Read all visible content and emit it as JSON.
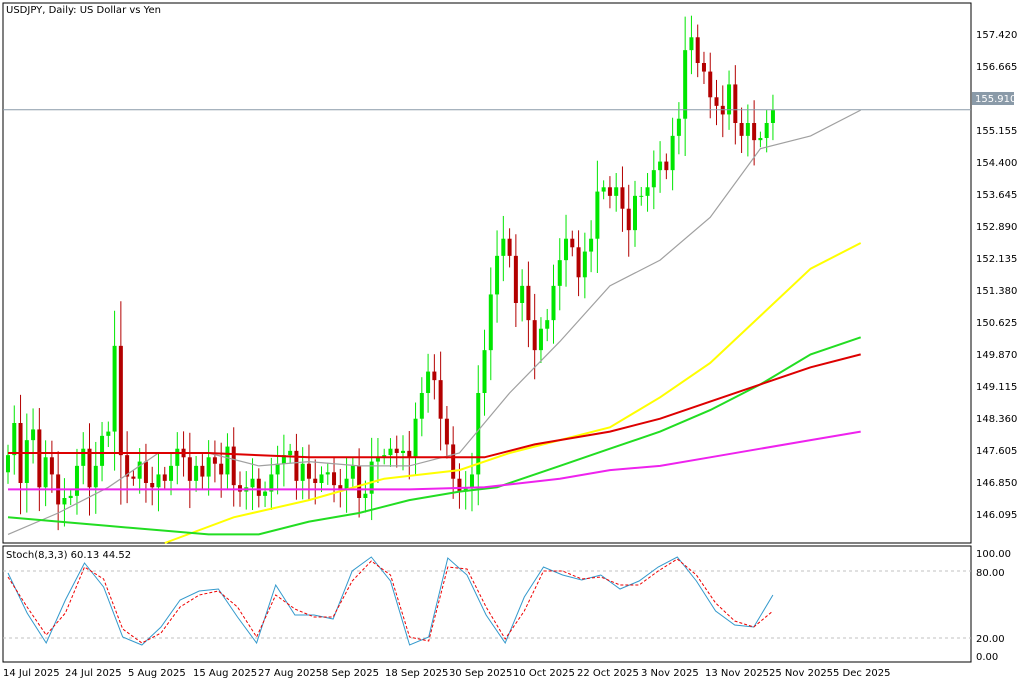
{
  "header": {
    "title": "USDJPY, Daily:  US Dollar vs Yen"
  },
  "price_panel": {
    "current_price": "155.910",
    "y_ticks": [
      "157.420",
      "156.665",
      "155.155",
      "154.400",
      "153.645",
      "152.890",
      "152.135",
      "151.380",
      "150.625",
      "149.870",
      "149.115",
      "148.360",
      "147.605",
      "146.850",
      "146.095"
    ]
  },
  "stoch_panel": {
    "label": "Stoch(8,3,3) 60.13 44.52",
    "y_ticks": [
      "100.00",
      "80.00",
      "20.00",
      "0.00"
    ]
  },
  "x_axis": {
    "ticks": [
      "14 Jul 2025",
      "24 Jul 2025",
      "5 Aug 2025",
      "15 Aug 2025",
      "27 Aug 2025",
      "8 Sep 2025",
      "18 Sep 2025",
      "30 Sep 2025",
      "10 Oct 2025",
      "22 Oct 2025",
      "3 Nov 2025",
      "13 Nov 2025",
      "25 Nov 2025",
      "5 Dec 2025"
    ]
  },
  "colors": {
    "bull": "#00e600",
    "bear": "#b30000",
    "ma_gray": "#a0a0a0",
    "ma_yellow": "#ffff00",
    "ma_green": "#22dd22",
    "ma_red": "#dd0000",
    "ma_magenta": "#ee22ee",
    "stoch_main": "#3399cc",
    "stoch_signal": "#ee0000",
    "price_line": "#8a9aa8"
  },
  "chart_data": [
    {
      "type": "candlestick",
      "title": "USDJPY, Daily:  US Dollar vs Yen",
      "ylim": [
        145.8,
        158.4
      ],
      "current_price": 155.91,
      "ohlc_seed": [
        147.85,
        148.6,
        147.2,
        148.2,
        148.45,
        147.1,
        147.8,
        147.4,
        146.7,
        146.85,
        146.9,
        147.6,
        148.0,
        147.1,
        147.6,
        148.3,
        148.4,
        150.4,
        147.85,
        147.35,
        147.3,
        147.7,
        147.2,
        147.1,
        147.4,
        147.25,
        147.6,
        148.0,
        147.8,
        147.25,
        147.6,
        147.35,
        147.8,
        147.65,
        147.4,
        148.05,
        147.15,
        147.0,
        147.1,
        147.3,
        146.9,
        147.0,
        147.4,
        147.65,
        147.85,
        147.95,
        147.25,
        147.65,
        147.3,
        147.2,
        147.4,
        147.45,
        147.15,
        147.05,
        147.3,
        147.6,
        146.85,
        146.95,
        147.7,
        147.8,
        147.85,
        148.0,
        147.9,
        147.95,
        147.8,
        148.7,
        149.3,
        149.8,
        149.6,
        148.7,
        148.1,
        147.3,
        147.0,
        147.1,
        147.4,
        149.3,
        150.3,
        151.6,
        152.5,
        152.9,
        152.5,
        151.4,
        151.8,
        151.0,
        150.3,
        150.8,
        151.0,
        151.8,
        152.4,
        152.9,
        152.7,
        152.0,
        152.6,
        152.9,
        154.0,
        154.1,
        153.9,
        154.1,
        153.6,
        153.1,
        153.9,
        153.9,
        154.1,
        154.5,
        154.7,
        154.5,
        155.3,
        155.7,
        157.3,
        157.6,
        157.0,
        156.8,
        156.2,
        156.0,
        155.8,
        156.5,
        155.6,
        155.3,
        155.6,
        155.2,
        155.25,
        155.6,
        155.9
      ],
      "x_ticks": [
        "14 Jul 2025",
        "24 Jul 2025",
        "5 Aug 2025",
        "15 Aug 2025",
        "27 Aug 2025",
        "8 Sep 2025",
        "18 Sep 2025",
        "30 Sep 2025",
        "10 Oct 2025",
        "22 Oct 2025",
        "3 Nov 2025",
        "13 Nov 2025",
        "25 Nov 2025",
        "5 Dec 2025"
      ],
      "moving_averages": [
        {
          "color": "#a0a0a0",
          "points": [
            [
              0,
              146.0
            ],
            [
              8,
              146.5
            ],
            [
              16,
              147.1
            ],
            [
              24,
              147.9
            ],
            [
              32,
              147.9
            ],
            [
              40,
              147.6
            ],
            [
              48,
              147.7
            ],
            [
              56,
              147.6
            ],
            [
              64,
              147.6
            ],
            [
              72,
              147.9
            ],
            [
              80,
              149.3
            ],
            [
              88,
              150.5
            ],
            [
              96,
              151.8
            ],
            [
              104,
              152.4
            ],
            [
              112,
              153.4
            ],
            [
              120,
              155.0
            ],
            [
              128,
              155.3
            ],
            [
              136,
              155.9
            ]
          ]
        },
        {
          "color": "#ffff00",
          "points": [
            [
              25,
              145.8
            ],
            [
              36,
              146.4
            ],
            [
              48,
              146.8
            ],
            [
              60,
              147.3
            ],
            [
              72,
              147.5
            ],
            [
              80,
              147.9
            ],
            [
              88,
              148.2
            ],
            [
              96,
              148.5
            ],
            [
              104,
              149.2
            ],
            [
              112,
              150.0
            ],
            [
              120,
              151.1
            ],
            [
              128,
              152.2
            ],
            [
              136,
              152.8
            ]
          ]
        },
        {
          "color": "#22dd22",
          "points": [
            [
              0,
              146.4
            ],
            [
              16,
              146.2
            ],
            [
              32,
              146.0
            ],
            [
              40,
              146.0
            ],
            [
              48,
              146.3
            ],
            [
              56,
              146.5
            ],
            [
              64,
              146.8
            ],
            [
              72,
              147.0
            ],
            [
              78,
              147.1
            ],
            [
              88,
              147.6
            ],
            [
              96,
              148.0
            ],
            [
              104,
              148.4
            ],
            [
              112,
              148.9
            ],
            [
              120,
              149.5
            ],
            [
              128,
              150.2
            ],
            [
              136,
              150.6
            ]
          ]
        },
        {
          "color": "#dd0000",
          "points": [
            [
              0,
              147.9
            ],
            [
              16,
              147.9
            ],
            [
              32,
              147.9
            ],
            [
              48,
              147.8
            ],
            [
              64,
              147.8
            ],
            [
              76,
              147.8
            ],
            [
              84,
              148.1
            ],
            [
              96,
              148.4
            ],
            [
              104,
              148.7
            ],
            [
              112,
              149.1
            ],
            [
              120,
              149.5
            ],
            [
              128,
              149.9
            ],
            [
              136,
              150.2
            ]
          ]
        },
        {
          "color": "#ee22ee",
          "points": [
            [
              0,
              147.05
            ],
            [
              32,
              147.05
            ],
            [
              64,
              147.05
            ],
            [
              76,
              147.1
            ],
            [
              88,
              147.3
            ],
            [
              96,
              147.5
            ],
            [
              104,
              147.6
            ],
            [
              112,
              147.8
            ],
            [
              120,
              148.0
            ],
            [
              128,
              148.2
            ],
            [
              136,
              148.4
            ]
          ]
        }
      ]
    },
    {
      "type": "line",
      "title": "Stoch(8,3,3) 60.13 44.52",
      "ylim": [
        0,
        100
      ],
      "series": [
        {
          "color": "#3399cc",
          "values": [
            82,
            42,
            12,
            55,
            92,
            68,
            18,
            10,
            28,
            55,
            64,
            66,
            38,
            12,
            70,
            40,
            40,
            36,
            84,
            98,
            74,
            10,
            18,
            97,
            80,
            40,
            12,
            58,
            88,
            80,
            75,
            80,
            66,
            74,
            88,
            98,
            74,
            44,
            30,
            28,
            60
          ]
        },
        {
          "color": "#ee0000",
          "values": [
            78,
            48,
            20,
            42,
            88,
            76,
            26,
            12,
            22,
            48,
            60,
            64,
            48,
            18,
            60,
            46,
            38,
            38,
            74,
            94,
            80,
            18,
            14,
            88,
            86,
            48,
            16,
            44,
            84,
            84,
            76,
            78,
            70,
            70,
            84,
            96,
            80,
            52,
            34,
            28,
            44
          ]
        }
      ]
    }
  ]
}
